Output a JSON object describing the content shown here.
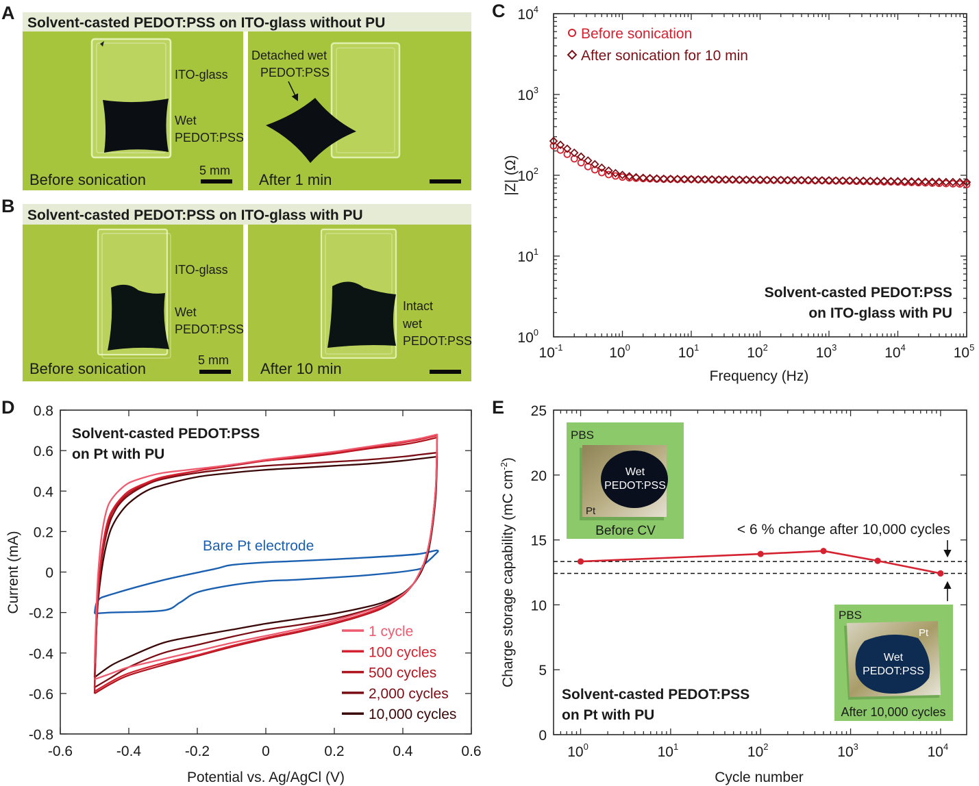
{
  "panel_labels": {
    "a": "A",
    "b": "B",
    "c": "C",
    "d": "D",
    "e": "E"
  },
  "panel_a": {
    "header": "Solvent-casted PEDOT:PSS on ITO-glass without PU",
    "left": {
      "glass_label": "ITO-glass",
      "film_label_1": "Wet",
      "film_label_2": "PEDOT:PSS",
      "scale_bar": "5 mm",
      "caption": "Before sonication"
    },
    "right": {
      "annotation_1": "Detached wet",
      "annotation_2": "PEDOT:PSS",
      "caption": "After 1 min"
    }
  },
  "panel_b": {
    "header": "Solvent-casted PEDOT:PSS on ITO-glass with PU",
    "left": {
      "glass_label": "ITO-glass",
      "film_label_1": "Wet",
      "film_label_2": "PEDOT:PSS",
      "scale_bar": "5 mm",
      "caption": "Before sonication"
    },
    "right": {
      "annotation_1": "Intact",
      "annotation_2": "wet",
      "annotation_3": "PEDOT:PSS",
      "caption": "After 10 min"
    }
  },
  "chart_data": [
    {
      "panel": "C",
      "type": "scatter",
      "xscale": "log",
      "yscale": "log",
      "title": "",
      "xlabel": "Frequency (Hz)",
      "ylabel": "|Z| (Ω)",
      "xlim": [
        0.1,
        100000
      ],
      "ylim": [
        1,
        10000
      ],
      "grid": false,
      "legend": "top-left",
      "xticks": [
        {
          "value": 0.1,
          "base": "10",
          "exp": "-1"
        },
        {
          "value": 1,
          "base": "10",
          "exp": "0"
        },
        {
          "value": 10,
          "base": "10",
          "exp": "1"
        },
        {
          "value": 100,
          "base": "10",
          "exp": "2"
        },
        {
          "value": 1000,
          "base": "10",
          "exp": "3"
        },
        {
          "value": 10000,
          "base": "10",
          "exp": "4"
        },
        {
          "value": 100000,
          "base": "10",
          "exp": "5"
        }
      ],
      "yticks": [
        {
          "value": 1,
          "base": "10",
          "exp": "0"
        },
        {
          "value": 10,
          "base": "10",
          "exp": "1"
        },
        {
          "value": 100,
          "base": "10",
          "exp": "2"
        },
        {
          "value": 1000,
          "base": "10",
          "exp": "3"
        },
        {
          "value": 10000,
          "base": "10",
          "exp": "4"
        }
      ],
      "annotation": [
        "Solvent-casted PEDOT:PSS",
        "on ITO-glass with PU"
      ],
      "frequency_hz": [
        0.1,
        0.126,
        0.158,
        0.2,
        0.251,
        0.316,
        0.398,
        0.501,
        0.631,
        0.794,
        1,
        1.26,
        1.58,
        2,
        2.51,
        3.16,
        3.98,
        5.01,
        6.31,
        7.94,
        10,
        12.6,
        15.8,
        20,
        25.1,
        31.6,
        39.8,
        50.1,
        63.1,
        79.4,
        100,
        126,
        158,
        200,
        251,
        316,
        398,
        501,
        631,
        794,
        1000,
        1259,
        1585,
        1995,
        2512,
        3162,
        3981,
        5012,
        6310,
        7943,
        10000,
        12589,
        15849,
        19953,
        25119,
        31623,
        39811,
        50119,
        63096,
        79433,
        100000
      ],
      "series": [
        {
          "name": "Before sonication",
          "marker": "circle",
          "color": "#d42230",
          "values": [
            231,
            205,
            182,
            160,
            143,
            128,
            117,
            108,
            102,
            98,
            95,
            93,
            92,
            91,
            90.5,
            90,
            89.5,
            89.5,
            89,
            89,
            89,
            88.5,
            88.5,
            88,
            88,
            88,
            88,
            87.5,
            87.5,
            87.5,
            87,
            87,
            87,
            87,
            86.5,
            86.5,
            86.5,
            86,
            86,
            86,
            85.5,
            85.5,
            85,
            85,
            84.5,
            84,
            84,
            83.5,
            83,
            83,
            82.5,
            82,
            81.5,
            81,
            80.5,
            80,
            79.5,
            79,
            78.5,
            78,
            77
          ]
        },
        {
          "name": "After sonication for 10 min",
          "marker": "diamond",
          "color": "#7a1016",
          "values": [
            265,
            238,
            213,
            190,
            170,
            152,
            137,
            124,
            114,
            106,
            101,
            97,
            94.5,
            93,
            92,
            91,
            90.5,
            90,
            90,
            89.5,
            89.5,
            89,
            89,
            89,
            88.5,
            88.5,
            88.5,
            88,
            88,
            88,
            88,
            87.5,
            87.5,
            87.5,
            87,
            87,
            87,
            87,
            86.5,
            86.5,
            86.5,
            86,
            86,
            86,
            85.5,
            85.5,
            85,
            85,
            85,
            84.5,
            84.5,
            84,
            84,
            83.5,
            83.5,
            83,
            83,
            82.5,
            82.5,
            82,
            82
          ]
        }
      ]
    },
    {
      "panel": "D",
      "type": "line",
      "title": "",
      "xlabel": "Potential vs. Ag/AgCl (V)",
      "ylabel": "Current (mA)",
      "xlim": [
        -0.6,
        0.6
      ],
      "ylim": [
        -0.8,
        0.8
      ],
      "grid": false,
      "legend": "bottom-right",
      "xticks": [
        -0.6,
        -0.4,
        -0.2,
        0,
        0.2,
        0.4,
        0.6
      ],
      "xtick_labels": [
        "-0.6",
        "-0.4",
        "-0.2",
        "0",
        "0.2",
        "0.4",
        "0.6"
      ],
      "yticks": [
        -0.8,
        -0.6,
        -0.4,
        -0.2,
        0,
        0.2,
        0.4,
        0.6,
        0.8
      ],
      "ytick_labels": [
        "-0.8",
        "-0.6",
        "-0.4",
        "-0.2",
        "0",
        "0.2",
        "0.4",
        "0.6",
        "0.8"
      ],
      "annotation": [
        "Solvent-casted PEDOT:PSS",
        "on Pt with PU"
      ],
      "forward_potential_v": [
        -0.5,
        -0.495,
        -0.49,
        -0.48,
        -0.47,
        -0.46,
        -0.45,
        -0.43,
        -0.4,
        -0.35,
        -0.3,
        -0.2,
        -0.1,
        0,
        0.1,
        0.2,
        0.3,
        0.4,
        0.45,
        0.5
      ],
      "reverse_potential_v": [
        0.5,
        0.497,
        0.49,
        0.48,
        0.47,
        0.46,
        0.45,
        0.43,
        0.4,
        0.35,
        0.3,
        0.2,
        0.1,
        0,
        -0.1,
        -0.2,
        -0.3,
        -0.4,
        -0.45,
        -0.5
      ],
      "series": [
        {
          "name": "1 cycle",
          "color": "#ee5a6e",
          "forward_current_ma": [
            -0.45,
            -0.2,
            -0.02,
            0.17,
            0.27,
            0.33,
            0.36,
            0.4,
            0.44,
            0.47,
            0.49,
            0.51,
            0.53,
            0.555,
            0.575,
            0.595,
            0.62,
            0.645,
            0.66,
            0.68
          ],
          "reverse_current_ma": [
            0.68,
            0.45,
            0.3,
            0.17,
            0.09,
            0.035,
            0.0,
            -0.06,
            -0.11,
            -0.16,
            -0.19,
            -0.24,
            -0.28,
            -0.315,
            -0.35,
            -0.39,
            -0.43,
            -0.47,
            -0.5,
            -0.53
          ]
        },
        {
          "name": "100 cycles",
          "color": "#d42230",
          "forward_current_ma": [
            -0.58,
            -0.3,
            -0.1,
            0.08,
            0.19,
            0.26,
            0.3,
            0.35,
            0.4,
            0.44,
            0.47,
            0.5,
            0.53,
            0.55,
            0.57,
            0.59,
            0.615,
            0.64,
            0.655,
            0.675
          ],
          "reverse_current_ma": [
            0.675,
            0.45,
            0.3,
            0.17,
            0.09,
            0.035,
            0.0,
            -0.06,
            -0.115,
            -0.165,
            -0.2,
            -0.25,
            -0.29,
            -0.325,
            -0.365,
            -0.41,
            -0.45,
            -0.5,
            -0.54,
            -0.59
          ]
        },
        {
          "name": "500 cycles",
          "color": "#b0141f",
          "forward_current_ma": [
            -0.6,
            -0.32,
            -0.12,
            0.06,
            0.17,
            0.24,
            0.29,
            0.34,
            0.39,
            0.435,
            0.465,
            0.5,
            0.525,
            0.55,
            0.565,
            0.585,
            0.61,
            0.63,
            0.645,
            0.665
          ],
          "reverse_current_ma": [
            0.665,
            0.44,
            0.3,
            0.17,
            0.09,
            0.035,
            0.0,
            -0.06,
            -0.115,
            -0.17,
            -0.205,
            -0.255,
            -0.295,
            -0.33,
            -0.37,
            -0.415,
            -0.46,
            -0.51,
            -0.55,
            -0.6
          ]
        },
        {
          "name": "2,000 cycles",
          "color": "#7a0d14",
          "forward_current_ma": [
            -0.57,
            -0.3,
            -0.12,
            0.05,
            0.15,
            0.22,
            0.27,
            0.33,
            0.38,
            0.43,
            0.46,
            0.49,
            0.51,
            0.525,
            0.535,
            0.545,
            0.555,
            0.57,
            0.58,
            0.59
          ],
          "reverse_current_ma": [
            0.59,
            0.42,
            0.28,
            0.16,
            0.08,
            0.03,
            -0.005,
            -0.06,
            -0.11,
            -0.155,
            -0.185,
            -0.23,
            -0.26,
            -0.285,
            -0.32,
            -0.36,
            -0.4,
            -0.47,
            -0.52,
            -0.57
          ]
        },
        {
          "name": "10,000 cycles",
          "color": "#3a0808",
          "forward_current_ma": [
            -0.52,
            -0.3,
            -0.15,
            0.0,
            0.1,
            0.17,
            0.22,
            0.28,
            0.34,
            0.4,
            0.43,
            0.47,
            0.49,
            0.505,
            0.515,
            0.525,
            0.535,
            0.55,
            0.56,
            0.57
          ],
          "reverse_current_ma": [
            0.57,
            0.4,
            0.27,
            0.15,
            0.07,
            0.025,
            -0.01,
            -0.06,
            -0.105,
            -0.145,
            -0.17,
            -0.205,
            -0.23,
            -0.255,
            -0.285,
            -0.315,
            -0.35,
            -0.42,
            -0.46,
            -0.52
          ]
        }
      ],
      "bare_pt": {
        "name": "Bare Pt electrode",
        "color": "#1a5fb0",
        "forward_potential_v": [
          -0.5,
          -0.49,
          -0.45,
          -0.3,
          -0.15,
          -0.1,
          0,
          0.1,
          0.3,
          0.44,
          0.5
        ],
        "forward_current_ma": [
          -0.205,
          -0.14,
          -0.11,
          -0.04,
          0.015,
          0.035,
          0.048,
          0.055,
          0.072,
          0.088,
          0.107
        ],
        "reverse_potential_v": [
          0.5,
          0.49,
          0.46,
          0.44,
          0.3,
          0.1,
          0,
          -0.1,
          -0.2,
          -0.25,
          -0.3,
          -0.45,
          -0.5
        ],
        "reverse_current_ma": [
          0.107,
          0.08,
          0.035,
          0.012,
          -0.015,
          -0.037,
          -0.045,
          -0.065,
          -0.1,
          -0.15,
          -0.19,
          -0.2,
          -0.205
        ]
      }
    },
    {
      "panel": "E",
      "type": "line",
      "xscale": "log",
      "title": "",
      "xlabel": "Cycle number",
      "ylabel": "Charge storage capability (mC cm",
      "ylabel_sup": "-2",
      "ylabel_end": ")",
      "xlim": [
        0.5,
        19500
      ],
      "ylim": [
        0,
        25
      ],
      "grid": false,
      "xticks": [
        {
          "value": 1,
          "base": "10",
          "exp": "0"
        },
        {
          "value": 10,
          "base": "10",
          "exp": "1"
        },
        {
          "value": 100,
          "base": "10",
          "exp": "2"
        },
        {
          "value": 1000,
          "base": "10",
          "exp": "3"
        },
        {
          "value": 10000,
          "base": "10",
          "exp": "4"
        }
      ],
      "yticks": [
        0,
        5,
        10,
        15,
        20,
        25
      ],
      "ytick_labels": [
        "0",
        "5",
        "10",
        "15",
        "20",
        "25"
      ],
      "series": [
        {
          "name": "Charge storage capability",
          "color": "#d42230",
          "x": [
            1,
            100,
            500,
            2000,
            10000
          ],
          "y": [
            13.34,
            13.92,
            14.15,
            13.39,
            12.42
          ]
        }
      ],
      "reference_lines": [
        13.34,
        12.42
      ],
      "change_annotation": "< 6 % change after 10,000 cycles",
      "annotation": [
        "Solvent-casted PEDOT:PSS",
        "on Pt with PU"
      ],
      "insets": [
        {
          "medium": "PBS",
          "substrate": "Pt",
          "film_1": "Wet",
          "film_2": "PEDOT:PSS",
          "caption": "Before CV"
        },
        {
          "medium": "PBS",
          "substrate": "Pt",
          "film_1": "Wet",
          "film_2": "PEDOT:PSS",
          "caption": "After 10,000 cycles"
        }
      ]
    }
  ]
}
